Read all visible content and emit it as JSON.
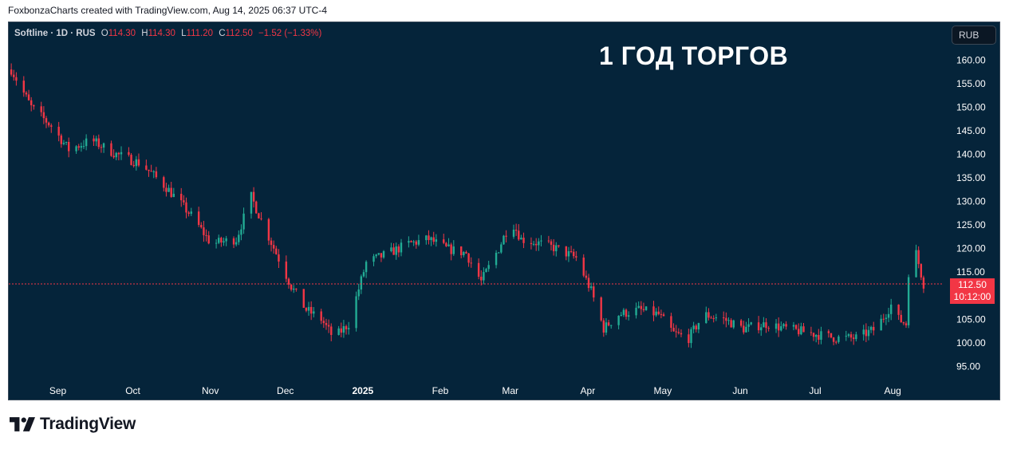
{
  "header": {
    "credit": "FoxbonzaCharts created with TradingView.com, Aug 14, 2025 06:37 UTC-4"
  },
  "legend": {
    "symbol": "Softline · 1D · RUS",
    "o_label": "O",
    "o_value": "114.30",
    "h_label": "H",
    "h_value": "114.30",
    "l_label": "L",
    "l_value": "111.20",
    "c_label": "C",
    "c_value": "112.50",
    "change": "−1.52 (−1.33%)"
  },
  "overlay_title": "1 ГОД ТОРГОВ",
  "currency_button": "RUB",
  "price_tag": {
    "price": "112.50",
    "countdown": "10:12:00"
  },
  "footer": {
    "brand": "TradingView",
    "logo_icon": "tradingview-logo-icon"
  },
  "colors": {
    "background": "#05243a",
    "up": "#22ab94",
    "down": "#f23645",
    "axis_text": "#ffffff",
    "price_line": "#f23645"
  },
  "chart_data": {
    "type": "candlestick",
    "title": "",
    "xlabel": "",
    "ylabel": "",
    "ylim": [
      91,
      168
    ],
    "y_ticks": [
      160,
      155,
      150,
      145,
      140,
      135,
      130,
      125,
      120,
      115,
      110,
      105,
      100,
      95
    ],
    "y_tick_labels": [
      "160.00",
      "155.00",
      "150.00",
      "145.00",
      "140.00",
      "135.00",
      "130.00",
      "125.00",
      "120.00",
      "115.00",
      "110.00",
      "105.00",
      "100.00",
      "95.00"
    ],
    "x_labels": [
      {
        "label": "Sep",
        "date": "2024-09-01"
      },
      {
        "label": "Oct",
        "date": "2024-10-01"
      },
      {
        "label": "Nov",
        "date": "2024-11-01"
      },
      {
        "label": "Dec",
        "date": "2024-12-01"
      },
      {
        "label": "2025",
        "date": "2025-01-01"
      },
      {
        "label": "Feb",
        "date": "2025-02-01"
      },
      {
        "label": "Mar",
        "date": "2025-03-01"
      },
      {
        "label": "Apr",
        "date": "2025-04-01"
      },
      {
        "label": "May",
        "date": "2025-05-01"
      },
      {
        "label": "Jun",
        "date": "2025-06-01"
      },
      {
        "label": "Jul",
        "date": "2025-07-01"
      },
      {
        "label": "Aug",
        "date": "2025-08-01"
      }
    ],
    "last_price": 112.5,
    "close_path": [
      [
        "2024-08-14",
        158
      ],
      [
        "2024-08-22",
        150
      ],
      [
        "2024-08-30",
        146
      ],
      [
        "2024-09-06",
        141
      ],
      [
        "2024-09-15",
        143
      ],
      [
        "2024-09-25",
        140
      ],
      [
        "2024-10-05",
        138
      ],
      [
        "2024-10-15",
        133
      ],
      [
        "2024-10-25",
        127
      ],
      [
        "2024-11-02",
        121
      ],
      [
        "2024-11-12",
        122
      ],
      [
        "2024-11-18",
        131
      ],
      [
        "2024-11-22",
        126
      ],
      [
        "2024-11-28",
        119
      ],
      [
        "2024-12-04",
        112
      ],
      [
        "2024-12-10",
        107
      ],
      [
        "2024-12-16",
        105
      ],
      [
        "2024-12-21",
        101
      ],
      [
        "2024-12-27",
        104
      ],
      [
        "2025-01-03",
        117
      ],
      [
        "2025-01-12",
        119
      ],
      [
        "2025-01-20",
        121
      ],
      [
        "2025-01-28",
        122
      ],
      [
        "2025-02-04",
        120
      ],
      [
        "2025-02-12",
        119
      ],
      [
        "2025-02-18",
        113
      ],
      [
        "2025-02-25",
        120
      ],
      [
        "2025-03-02",
        126
      ],
      [
        "2025-03-06",
        122
      ],
      [
        "2025-03-14",
        121
      ],
      [
        "2025-03-20",
        120
      ],
      [
        "2025-03-28",
        118
      ],
      [
        "2025-04-03",
        111
      ],
      [
        "2025-04-08",
        103
      ],
      [
        "2025-04-14",
        106
      ],
      [
        "2025-04-22",
        107
      ],
      [
        "2025-04-30",
        106
      ],
      [
        "2025-05-06",
        102
      ],
      [
        "2025-05-12",
        101
      ],
      [
        "2025-05-18",
        106
      ],
      [
        "2025-05-26",
        105
      ],
      [
        "2025-06-03",
        103
      ],
      [
        "2025-06-12",
        104
      ],
      [
        "2025-06-20",
        103
      ],
      [
        "2025-06-30",
        102
      ],
      [
        "2025-07-10",
        101
      ],
      [
        "2025-07-18",
        101
      ],
      [
        "2025-07-26",
        103
      ],
      [
        "2025-08-01",
        108
      ],
      [
        "2025-08-04",
        105
      ],
      [
        "2025-08-07",
        104
      ],
      [
        "2025-08-08",
        115
      ],
      [
        "2025-08-11",
        119
      ],
      [
        "2025-08-14",
        112.5
      ]
    ]
  }
}
